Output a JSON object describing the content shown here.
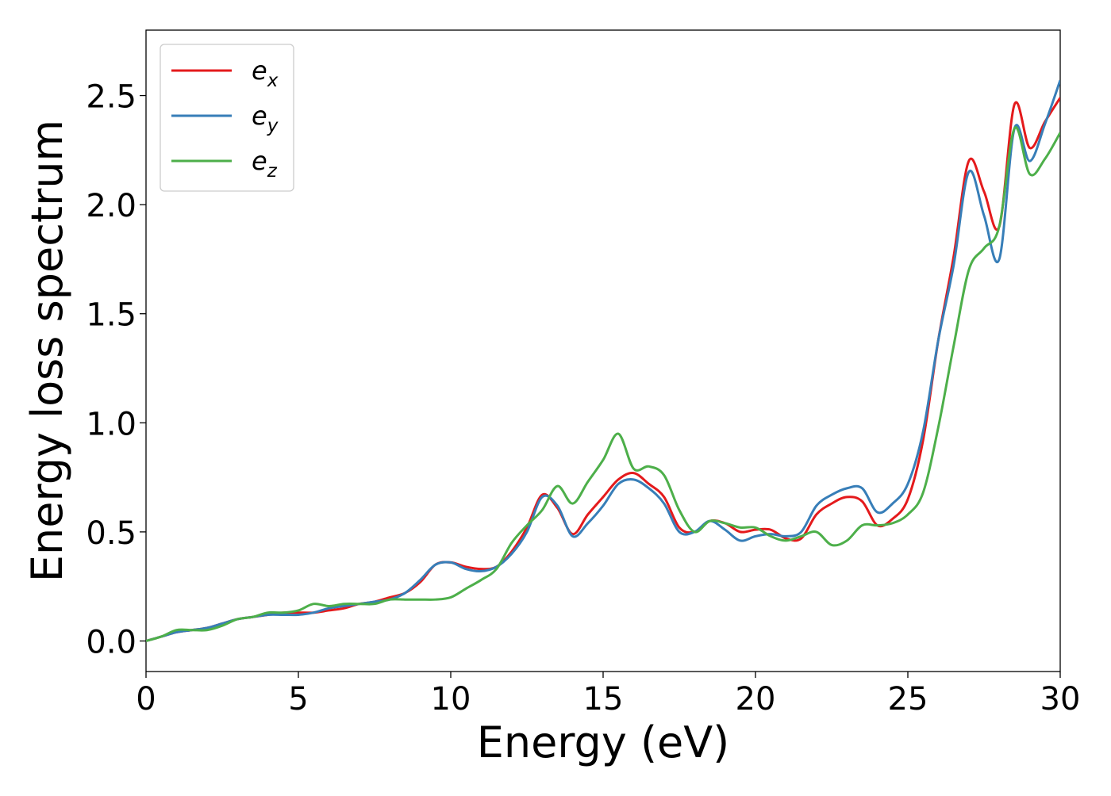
{
  "chart_data": {
    "type": "line",
    "title": "",
    "xlabel": "Energy (eV)",
    "ylabel": "Energy loss spectrum",
    "xlim": [
      0,
      30
    ],
    "ylim": [
      -0.14,
      2.8
    ],
    "xticks": [
      0,
      5,
      10,
      15,
      20,
      25,
      30
    ],
    "xtick_labels": [
      "0",
      "5",
      "10",
      "15",
      "20",
      "25",
      "30"
    ],
    "yticks": [
      0.0,
      0.5,
      1.0,
      1.5,
      2.0,
      2.5
    ],
    "ytick_labels": [
      "0.0",
      "0.5",
      "1.0",
      "1.5",
      "2.0",
      "2.5"
    ],
    "grid": false,
    "legend_position": "top-left",
    "series": [
      {
        "name": "e",
        "subscript": "x",
        "color": "#e41a1c",
        "x": [
          0,
          0.5,
          1,
          1.5,
          2,
          2.5,
          3,
          3.5,
          4,
          4.5,
          5,
          5.5,
          6,
          6.5,
          7,
          7.5,
          8,
          8.5,
          9,
          9.5,
          10,
          10.5,
          11,
          11.5,
          12,
          12.5,
          13,
          13.5,
          14,
          14.5,
          15,
          15.5,
          16,
          16.5,
          17,
          17.5,
          18,
          18.5,
          19,
          19.5,
          20,
          20.5,
          21,
          21.5,
          22,
          22.5,
          23,
          23.5,
          24,
          24.5,
          25,
          25.5,
          26,
          26.5,
          27,
          27.5,
          28,
          28.5,
          29,
          29.5,
          30
        ],
        "y": [
          0.0,
          0.02,
          0.04,
          0.05,
          0.06,
          0.08,
          0.1,
          0.11,
          0.12,
          0.13,
          0.13,
          0.13,
          0.14,
          0.15,
          0.17,
          0.18,
          0.2,
          0.22,
          0.27,
          0.35,
          0.36,
          0.34,
          0.33,
          0.34,
          0.41,
          0.52,
          0.67,
          0.61,
          0.49,
          0.58,
          0.66,
          0.74,
          0.77,
          0.72,
          0.66,
          0.52,
          0.5,
          0.55,
          0.54,
          0.5,
          0.51,
          0.51,
          0.47,
          0.47,
          0.58,
          0.63,
          0.66,
          0.64,
          0.53,
          0.56,
          0.65,
          0.92,
          1.38,
          1.76,
          2.2,
          2.06,
          1.9,
          2.46,
          2.26,
          2.38,
          2.49
        ]
      },
      {
        "name": "e",
        "subscript": "y",
        "color": "#377eb8",
        "x": [
          0,
          0.5,
          1,
          1.5,
          2,
          2.5,
          3,
          3.5,
          4,
          4.5,
          5,
          5.5,
          6,
          6.5,
          7,
          7.5,
          8,
          8.5,
          9,
          9.5,
          10,
          10.5,
          11,
          11.5,
          12,
          12.5,
          13,
          13.5,
          14,
          14.5,
          15,
          15.5,
          16,
          16.5,
          17,
          17.5,
          18,
          18.5,
          19,
          19.5,
          20,
          20.5,
          21,
          21.5,
          22,
          22.5,
          23,
          23.5,
          24,
          24.5,
          25,
          25.5,
          26,
          26.5,
          27,
          27.5,
          28,
          28.5,
          29,
          29.5,
          30
        ],
        "y": [
          0.0,
          0.02,
          0.04,
          0.05,
          0.06,
          0.08,
          0.1,
          0.11,
          0.12,
          0.12,
          0.12,
          0.13,
          0.15,
          0.16,
          0.17,
          0.18,
          0.19,
          0.22,
          0.28,
          0.35,
          0.36,
          0.33,
          0.32,
          0.34,
          0.4,
          0.5,
          0.66,
          0.62,
          0.48,
          0.54,
          0.62,
          0.72,
          0.74,
          0.7,
          0.63,
          0.5,
          0.5,
          0.55,
          0.51,
          0.46,
          0.48,
          0.49,
          0.48,
          0.5,
          0.62,
          0.67,
          0.7,
          0.7,
          0.59,
          0.63,
          0.72,
          0.96,
          1.38,
          1.72,
          2.15,
          1.95,
          1.75,
          2.35,
          2.2,
          2.37,
          2.57
        ]
      },
      {
        "name": "e",
        "subscript": "z",
        "color": "#4daf4a",
        "x": [
          0,
          0.5,
          1,
          1.5,
          2,
          2.5,
          3,
          3.5,
          4,
          4.5,
          5,
          5.5,
          6,
          6.5,
          7,
          7.5,
          8,
          8.5,
          9,
          9.5,
          10,
          10.5,
          11,
          11.5,
          12,
          12.5,
          13,
          13.5,
          14,
          14.5,
          15,
          15.5,
          16,
          16.5,
          17,
          17.5,
          18,
          18.5,
          19,
          19.5,
          20,
          20.5,
          21,
          21.5,
          22,
          22.5,
          23,
          23.5,
          24,
          24.5,
          25,
          25.5,
          26,
          26.5,
          27,
          27.5,
          28,
          28.5,
          29,
          29.5,
          30
        ],
        "y": [
          0.0,
          0.02,
          0.05,
          0.05,
          0.05,
          0.07,
          0.1,
          0.11,
          0.13,
          0.13,
          0.14,
          0.17,
          0.16,
          0.17,
          0.17,
          0.17,
          0.19,
          0.19,
          0.19,
          0.19,
          0.2,
          0.24,
          0.28,
          0.33,
          0.45,
          0.53,
          0.6,
          0.71,
          0.63,
          0.73,
          0.83,
          0.95,
          0.79,
          0.8,
          0.76,
          0.6,
          0.5,
          0.55,
          0.54,
          0.52,
          0.52,
          0.48,
          0.46,
          0.48,
          0.5,
          0.44,
          0.46,
          0.53,
          0.53,
          0.54,
          0.58,
          0.68,
          0.98,
          1.35,
          1.7,
          1.8,
          1.9,
          2.35,
          2.14,
          2.21,
          2.33
        ]
      }
    ]
  }
}
